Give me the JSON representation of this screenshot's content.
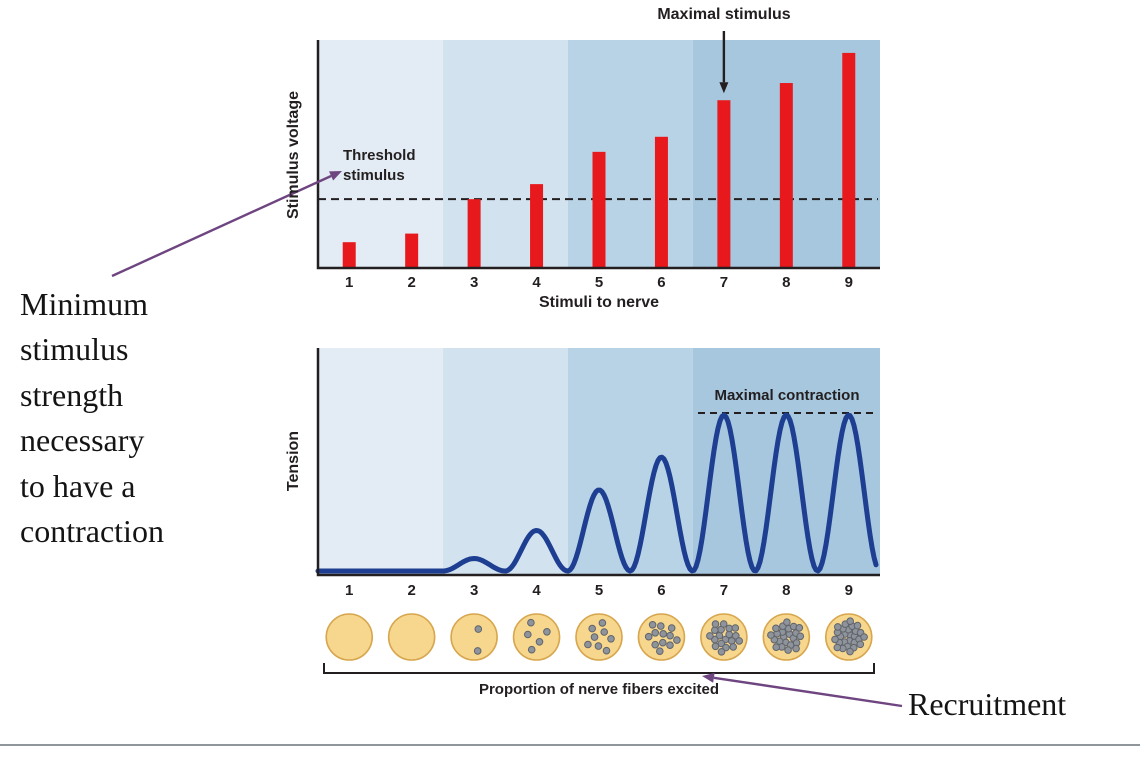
{
  "chart_data": [
    {
      "type": "bar",
      "title": "",
      "ylabel": "Stimulus voltage",
      "xlabel": "Stimuli to nerve",
      "categories": [
        "1",
        "2",
        "3",
        "4",
        "5",
        "6",
        "7",
        "8",
        "9"
      ],
      "values": [
        1.2,
        1.6,
        3.2,
        3.9,
        5.4,
        6.1,
        7.8,
        8.6,
        10.0
      ],
      "ylim": [
        0,
        10.6
      ],
      "threshold_value": 3.2,
      "threshold_label": "Threshold\nstimulus",
      "annotation": "Maximal stimulus",
      "annotation_category": "7",
      "bar_color": "#e8191d",
      "band_groups": [
        [
          1,
          2
        ],
        [
          3,
          4
        ],
        [
          5,
          6
        ],
        [
          7,
          9
        ]
      ]
    },
    {
      "type": "line",
      "title": "",
      "ylabel": "Tension",
      "xlabel": "",
      "categories": [
        "1",
        "2",
        "3",
        "4",
        "5",
        "6",
        "7",
        "8",
        "9"
      ],
      "values": [
        0,
        0,
        0.08,
        0.26,
        0.52,
        0.73,
        1.0,
        1.0,
        1.0
      ],
      "ylim": [
        0,
        1.15
      ],
      "annotation": "Maximal contraction",
      "line_color": "#1d3e91",
      "band_groups": [
        [
          1,
          2
        ],
        [
          3,
          4
        ],
        [
          5,
          6
        ],
        [
          7,
          9
        ]
      ]
    }
  ],
  "recruitment": {
    "caption": "Proportion of nerve fibers excited",
    "fiber_dot_counts": [
      0,
      0,
      2,
      5,
      8,
      12,
      19,
      23,
      27
    ],
    "circle_fill": "#f6d78d",
    "circle_stroke": "#d7a64e",
    "dot_fill": "#8f949c",
    "dot_stroke": "#60646b"
  },
  "annotations": {
    "left_note": "Minimum\nstimulus\nstrength\nnecessary\nto have a\ncontraction",
    "recruitment": "Recruitment",
    "arrow_color": "#6e4580"
  },
  "colors": {
    "band_shades": [
      "#e3ecf4",
      "#d2e2ef",
      "#b9d3e6",
      "#a7c7de"
    ],
    "axis": "#231f20",
    "dashed": "#231f20",
    "footer_line": "#8f969c"
  }
}
